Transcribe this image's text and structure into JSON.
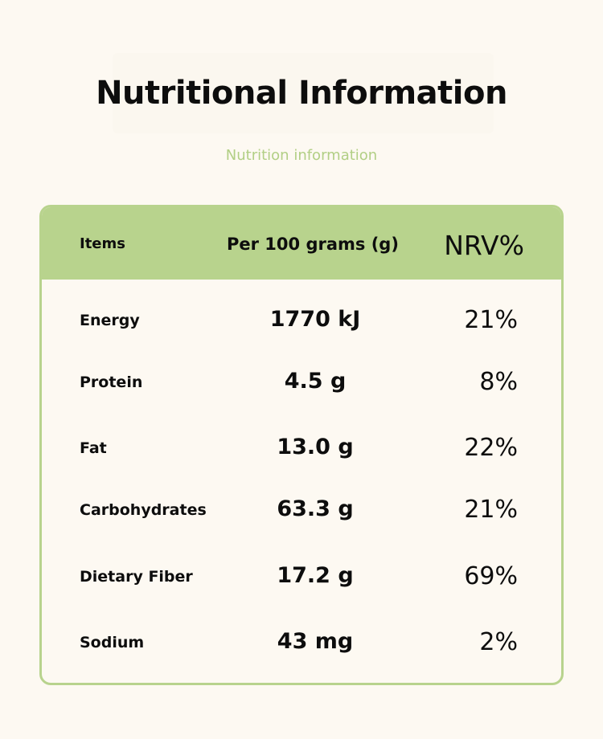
{
  "header": {
    "title": "Nutritional Information",
    "subtitle": "Nutrition information"
  },
  "table": {
    "columns": [
      "Items",
      "Per 100 grams (g)",
      "NRV%"
    ],
    "rows": [
      {
        "item": "Energy",
        "per_100g": "1770 kJ",
        "nrv": "21%"
      },
      {
        "item": "Protein",
        "per_100g": "4.5 g",
        "nrv": "8%"
      },
      {
        "item": "Fat",
        "per_100g": "13.0 g",
        "nrv": "22%"
      },
      {
        "item": "Carbohydrates",
        "per_100g": "63.3 g",
        "nrv": "21%"
      },
      {
        "item": "Dietary Fiber",
        "per_100g": "17.2 g",
        "nrv": "69%"
      },
      {
        "item": "Sodium",
        "per_100g": "43 mg",
        "nrv": "2%"
      }
    ]
  },
  "colors": {
    "background": "#fdf9f2",
    "accent": "#b8d38d",
    "subtitle": "#b2cf85",
    "text": "#0d0d0d"
  }
}
